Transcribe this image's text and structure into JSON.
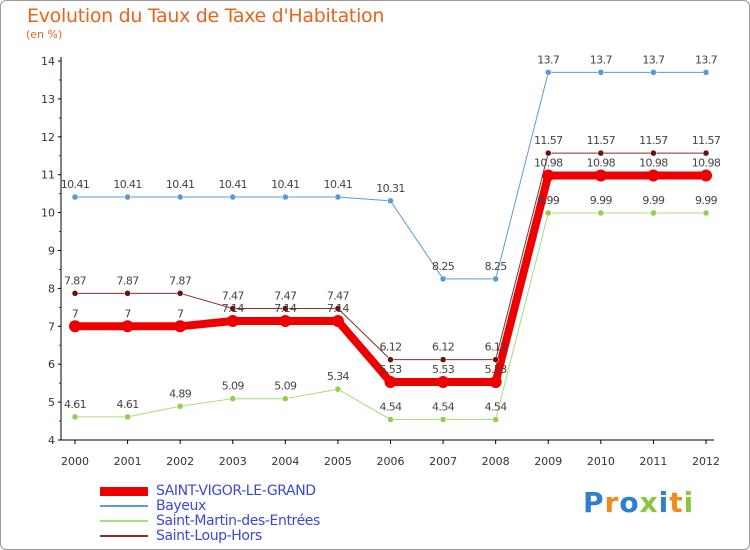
{
  "title": "Evolution du Taux de Taxe d'Habitation",
  "subtitle": "(en %)",
  "logo": {
    "text": "Proxiti",
    "letters": [
      "P",
      "r",
      "o",
      "x",
      "i",
      "t",
      "i"
    ],
    "colors": [
      "#2f7fd1",
      "#f08a1a",
      "#2f7fd1",
      "#8cc63f",
      "#2f7fd1",
      "#f08a1a",
      "#8cc63f"
    ]
  },
  "chart_data": {
    "type": "line",
    "title": "Evolution du Taux de Taxe d'Habitation",
    "ylabel": "(en %)",
    "xlabel": "",
    "ylim": [
      4,
      14
    ],
    "yticks": [
      4,
      5,
      6,
      7,
      8,
      9,
      10,
      11,
      12,
      13,
      14
    ],
    "x": [
      "2000",
      "2001",
      "2002",
      "2003",
      "2004",
      "2005",
      "2006",
      "2007",
      "2008",
      "2009",
      "2010",
      "2011",
      "2012"
    ],
    "series": [
      {
        "name": "Bayeux",
        "color": "#5b9bd5",
        "marker": "#5b9bd5",
        "width": 1,
        "values": [
          10.41,
          10.41,
          10.41,
          10.41,
          10.41,
          10.41,
          10.31,
          8.25,
          8.25,
          13.7,
          13.7,
          13.7,
          13.7
        ],
        "labels": [
          "10.41",
          "10.41",
          "10.41",
          "10.41",
          "10.41",
          "10.41",
          "10.31",
          "8.25",
          "8.25",
          "13.7",
          "13.7",
          "13.7",
          "13.7"
        ]
      },
      {
        "name": "Saint-Loup-Hors",
        "color": "#8b2e2e",
        "marker": "#6b0f0f",
        "width": 1,
        "values": [
          7.87,
          7.87,
          7.87,
          7.47,
          7.47,
          7.47,
          6.12,
          6.12,
          6.12,
          11.57,
          11.57,
          11.57,
          11.57
        ],
        "labels": [
          "7.87",
          "7.87",
          "7.87",
          "7.47",
          "7.47",
          "7.47",
          "6.12",
          "6.12",
          "6.12",
          "11.57",
          "11.57",
          "11.57",
          "11.57"
        ]
      },
      {
        "name": "Saint-Martin-des-Entrées",
        "color": "#a6df7a",
        "marker": "#8fd14f",
        "width": 1,
        "values": [
          4.61,
          4.61,
          4.89,
          5.09,
          5.09,
          5.34,
          4.54,
          4.54,
          4.54,
          9.99,
          9.99,
          9.99,
          9.99
        ],
        "labels": [
          "4.61",
          "4.61",
          "4.89",
          "5.09",
          "5.09",
          "5.34",
          "4.54",
          "4.54",
          "4.54",
          "9.99",
          "9.99",
          "9.99",
          "9.99"
        ]
      },
      {
        "name": "SAINT-VIGOR-LE-GRAND",
        "color": "#ee0000",
        "marker": "#ee0000",
        "width": 8,
        "values": [
          7,
          7,
          7,
          7.14,
          7.14,
          7.14,
          5.53,
          5.53,
          5.53,
          10.98,
          10.98,
          10.98,
          10.98
        ],
        "labels": [
          "7",
          "7",
          "7",
          "7.14",
          "7.14",
          "7.14",
          "5.53",
          "5.53",
          "5.53",
          "10.98",
          "10.98",
          "10.98",
          "10.98"
        ]
      }
    ],
    "legend": [
      {
        "name": "SAINT-VIGOR-LE-GRAND",
        "color": "#ee0000",
        "weight": 9
      },
      {
        "name": "Bayeux",
        "color": "#5b9bd5",
        "weight": 2
      },
      {
        "name": "Saint-Martin-des-Entrées",
        "color": "#a6df7a",
        "weight": 2
      },
      {
        "name": "Saint-Loup-Hors",
        "color": "#8b2e2e",
        "weight": 2
      }
    ]
  }
}
